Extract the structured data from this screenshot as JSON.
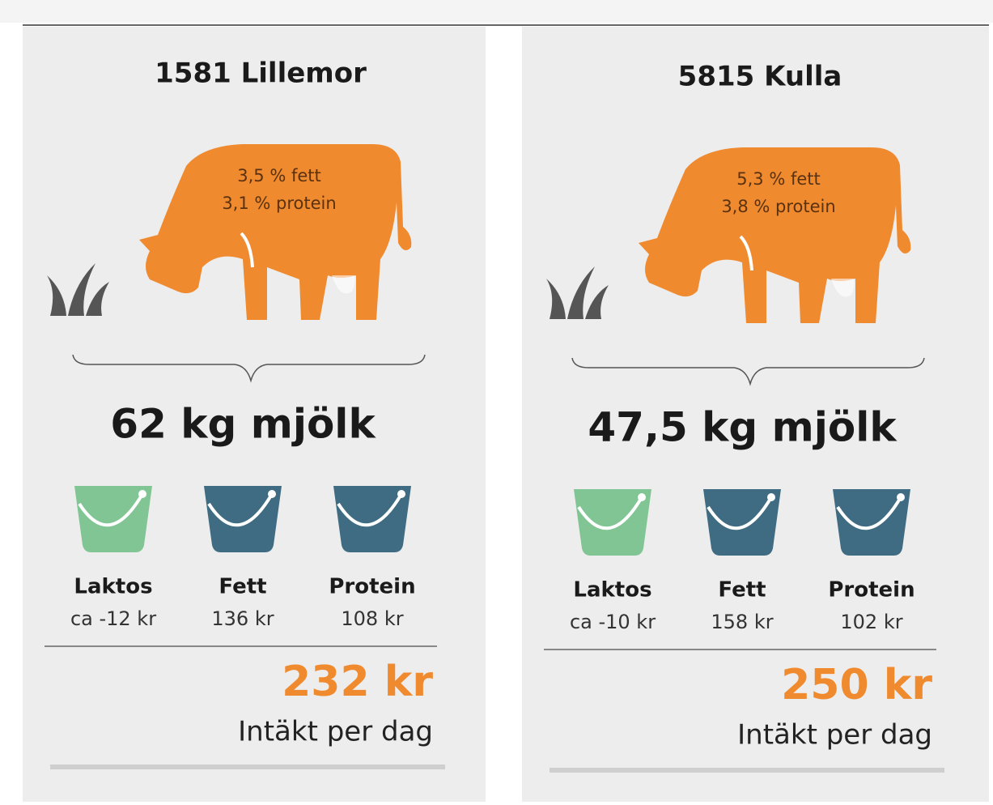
{
  "cards": [
    {
      "name": "1581 Lillemor",
      "fat": "3,5 % fett",
      "protein": "3,1 % protein",
      "milk": "62 kg mjölk",
      "buckets": [
        {
          "label": "Laktos",
          "value": "ca -12 kr"
        },
        {
          "label": "Fett",
          "value": "136 kr"
        },
        {
          "label": "Protein",
          "value": "108 kr"
        }
      ],
      "total": "232 kr",
      "total_label": "Intäkt per dag"
    },
    {
      "name": "5815 Kulla",
      "fat": "5,3 % fett",
      "protein": "3,8 % protein",
      "milk": "47,5 kg mjölk",
      "buckets": [
        {
          "label": "Laktos",
          "value": "ca -10 kr"
        },
        {
          "label": "Fett",
          "value": "158 kr"
        },
        {
          "label": "Protein",
          "value": "102 kr"
        }
      ],
      "total": "250 kr",
      "total_label": "Intäkt per dag"
    }
  ]
}
